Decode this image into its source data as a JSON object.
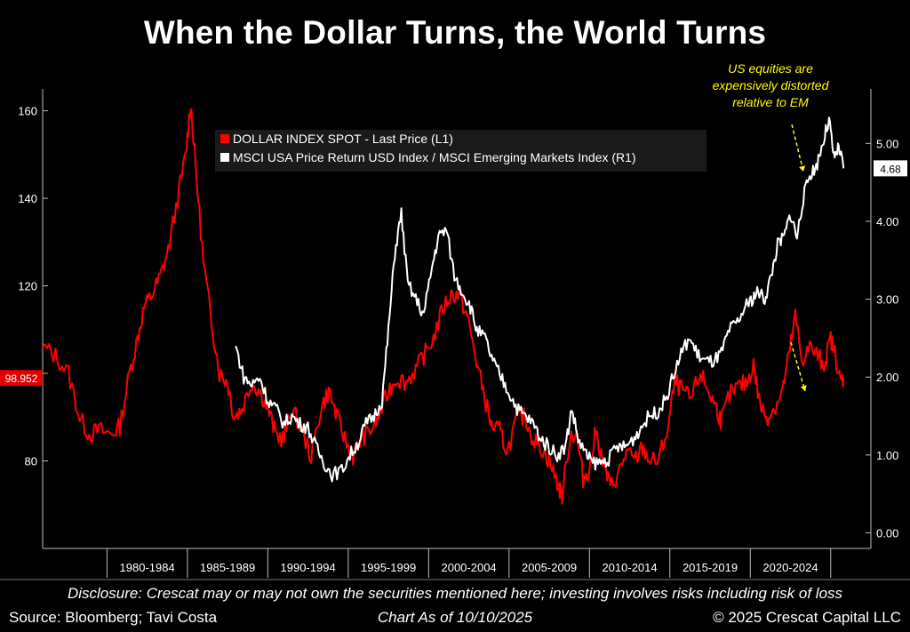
{
  "title": "When the Dollar Turns, the World Turns",
  "footer": {
    "disclosure": "Disclosure: Crescat may or may not own the securities mentioned here; investing involves risks including risk of loss",
    "source": "Source: Bloomberg; Tavi Costa",
    "as_of": "Chart As of 10/10/2025",
    "copyright": "© 2025 Crescat Capital LLC"
  },
  "annotation": {
    "lines": [
      "US equities are",
      "expensively distorted",
      "relative to EM"
    ],
    "color": "#ffff00"
  },
  "chart_data": {
    "type": "line",
    "x_categories": [
      "1980-1984",
      "1985-1989",
      "1990-1994",
      "1995-1999",
      "2000-2004",
      "2005-2009",
      "2010-2014",
      "2015-2019",
      "2020-2024"
    ],
    "xlim": [
      1976.0,
      2027.5
    ],
    "y_left": {
      "ticks": [
        80,
        100,
        120,
        140,
        160
      ],
      "tick_labels": [
        "80",
        "120",
        "140",
        "160"
      ],
      "range": [
        60,
        165
      ],
      "last_value_label": "98.952"
    },
    "y_right": {
      "ticks": [
        0,
        1,
        2,
        3,
        4,
        5
      ],
      "tick_labels": [
        "0.00",
        "1.00",
        "2.00",
        "3.00",
        "4.00",
        "5.00"
      ],
      "range": [
        -0.2,
        5.7
      ],
      "last_value_label": "4.68"
    },
    "legend": {
      "position": "top-center",
      "entries": [
        "DOLLAR INDEX SPOT - Last Price (L1)",
        "MSCI USA Price Return USD Index / MSCI Emerging Markets Index (R1)"
      ]
    },
    "series": [
      {
        "name": "DOLLAR INDEX SPOT - Last Price (L1)",
        "axis": "left",
        "color": "#ff0000",
        "points": [
          [
            1976.0,
            106
          ],
          [
            1976.8,
            104
          ],
          [
            1977.6,
            100
          ],
          [
            1978.3,
            90
          ],
          [
            1978.9,
            86
          ],
          [
            1979.5,
            87
          ],
          [
            1980.3,
            86
          ],
          [
            1980.8,
            88
          ],
          [
            1981.4,
            100
          ],
          [
            1981.9,
            108
          ],
          [
            1982.3,
            115
          ],
          [
            1982.8,
            118
          ],
          [
            1983.3,
            122
          ],
          [
            1983.8,
            128
          ],
          [
            1984.4,
            140
          ],
          [
            1984.9,
            150
          ],
          [
            1985.2,
            162
          ],
          [
            1985.5,
            148
          ],
          [
            1986.0,
            125
          ],
          [
            1986.5,
            112
          ],
          [
            1987.0,
            100
          ],
          [
            1987.5,
            98
          ],
          [
            1987.9,
            90
          ],
          [
            1988.4,
            92
          ],
          [
            1989.0,
            98
          ],
          [
            1989.5,
            96
          ],
          [
            1990.0,
            92
          ],
          [
            1990.5,
            86
          ],
          [
            1991.0,
            85
          ],
          [
            1991.5,
            92
          ],
          [
            1992.0,
            88
          ],
          [
            1992.7,
            81
          ],
          [
            1993.3,
            92
          ],
          [
            1993.8,
            96
          ],
          [
            1994.3,
            90
          ],
          [
            1994.9,
            84
          ],
          [
            1995.3,
            81
          ],
          [
            1995.8,
            85
          ],
          [
            1996.4,
            87
          ],
          [
            1996.9,
            90
          ],
          [
            1997.5,
            96
          ],
          [
            1998.0,
            99
          ],
          [
            1998.6,
            98
          ],
          [
            1999.2,
            101
          ],
          [
            1999.7,
            104
          ],
          [
            2000.3,
            108
          ],
          [
            2000.9,
            115
          ],
          [
            2001.4,
            118
          ],
          [
            2001.9,
            118
          ],
          [
            2002.4,
            113
          ],
          [
            2002.9,
            104
          ],
          [
            2003.4,
            96
          ],
          [
            2003.9,
            88
          ],
          [
            2004.4,
            87
          ],
          [
            2004.9,
            82
          ],
          [
            2005.5,
            90
          ],
          [
            2006.0,
            90
          ],
          [
            2006.5,
            85
          ],
          [
            2007.0,
            83
          ],
          [
            2007.5,
            80
          ],
          [
            2008.0,
            75
          ],
          [
            2008.3,
            72
          ],
          [
            2008.8,
            86
          ],
          [
            2009.2,
            86
          ],
          [
            2009.6,
            76
          ],
          [
            2010.0,
            78
          ],
          [
            2010.4,
            87
          ],
          [
            2010.9,
            79
          ],
          [
            2011.3,
            74
          ],
          [
            2011.8,
            77
          ],
          [
            2012.3,
            82
          ],
          [
            2012.8,
            80
          ],
          [
            2013.3,
            83
          ],
          [
            2013.8,
            80
          ],
          [
            2014.3,
            80
          ],
          [
            2014.9,
            88
          ],
          [
            2015.3,
            98
          ],
          [
            2015.8,
            96
          ],
          [
            2016.3,
            94
          ],
          [
            2016.9,
            100
          ],
          [
            2017.4,
            96
          ],
          [
            2017.9,
            92
          ],
          [
            2018.2,
            89
          ],
          [
            2018.7,
            95
          ],
          [
            2019.3,
            97
          ],
          [
            2019.8,
            98
          ],
          [
            2020.2,
            102
          ],
          [
            2020.6,
            93
          ],
          [
            2021.0,
            90
          ],
          [
            2021.5,
            92
          ],
          [
            2022.0,
            96
          ],
          [
            2022.4,
            104
          ],
          [
            2022.8,
            113
          ],
          [
            2023.2,
            103
          ],
          [
            2023.7,
            106
          ],
          [
            2024.2,
            104
          ],
          [
            2024.6,
            102
          ],
          [
            2025.0,
            108
          ],
          [
            2025.3,
            104
          ],
          [
            2025.6,
            98
          ],
          [
            2025.8,
            99
          ]
        ]
      },
      {
        "name": "MSCI USA Price Return USD Index / MSCI Emerging Markets Index (R1)",
        "axis": "right",
        "color": "#ffffff",
        "points": [
          [
            1988.0,
            2.4
          ],
          [
            1988.5,
            2.0
          ],
          [
            1989.0,
            1.9
          ],
          [
            1989.5,
            2.0
          ],
          [
            1990.0,
            1.7
          ],
          [
            1990.5,
            1.6
          ],
          [
            1991.0,
            1.4
          ],
          [
            1991.5,
            1.5
          ],
          [
            1992.0,
            1.4
          ],
          [
            1992.5,
            1.35
          ],
          [
            1993.0,
            1.1
          ],
          [
            1993.5,
            0.9
          ],
          [
            1994.0,
            0.75
          ],
          [
            1994.6,
            0.8
          ],
          [
            1995.1,
            1.0
          ],
          [
            1995.6,
            1.15
          ],
          [
            1996.1,
            1.4
          ],
          [
            1996.6,
            1.5
          ],
          [
            1997.1,
            1.7
          ],
          [
            1997.5,
            2.6
          ],
          [
            1997.9,
            3.6
          ],
          [
            1998.3,
            4.1
          ],
          [
            1998.7,
            3.2
          ],
          [
            1999.2,
            3.0
          ],
          [
            1999.7,
            2.8
          ],
          [
            2000.2,
            3.4
          ],
          [
            2000.6,
            3.8
          ],
          [
            2001.1,
            3.9
          ],
          [
            2001.6,
            3.3
          ],
          [
            2002.1,
            3.1
          ],
          [
            2002.6,
            2.9
          ],
          [
            2003.0,
            2.6
          ],
          [
            2003.5,
            2.5
          ],
          [
            2004.0,
            2.2
          ],
          [
            2004.5,
            2.0
          ],
          [
            2005.0,
            1.8
          ],
          [
            2005.5,
            1.6
          ],
          [
            2006.0,
            1.5
          ],
          [
            2006.5,
            1.4
          ],
          [
            2007.0,
            1.2
          ],
          [
            2007.5,
            1.1
          ],
          [
            2008.0,
            1.0
          ],
          [
            2008.5,
            1.1
          ],
          [
            2008.9,
            1.6
          ],
          [
            2009.3,
            1.2
          ],
          [
            2009.8,
            1.0
          ],
          [
            2010.2,
            0.9
          ],
          [
            2010.7,
            0.9
          ],
          [
            2011.2,
            0.95
          ],
          [
            2011.7,
            1.1
          ],
          [
            2012.2,
            1.1
          ],
          [
            2012.7,
            1.2
          ],
          [
            2013.2,
            1.35
          ],
          [
            2013.7,
            1.5
          ],
          [
            2014.2,
            1.55
          ],
          [
            2014.7,
            1.7
          ],
          [
            2015.2,
            2.0
          ],
          [
            2015.7,
            2.3
          ],
          [
            2016.2,
            2.5
          ],
          [
            2016.7,
            2.3
          ],
          [
            2017.2,
            2.2
          ],
          [
            2017.7,
            2.2
          ],
          [
            2018.2,
            2.3
          ],
          [
            2018.7,
            2.6
          ],
          [
            2019.2,
            2.7
          ],
          [
            2019.7,
            2.9
          ],
          [
            2020.1,
            3.0
          ],
          [
            2020.5,
            3.1
          ],
          [
            2020.9,
            3.0
          ],
          [
            2021.3,
            3.3
          ],
          [
            2021.7,
            3.7
          ],
          [
            2022.1,
            3.8
          ],
          [
            2022.5,
            4.1
          ],
          [
            2022.9,
            3.8
          ],
          [
            2023.3,
            4.3
          ],
          [
            2023.7,
            4.6
          ],
          [
            2024.1,
            4.7
          ],
          [
            2024.5,
            5.0
          ],
          [
            2024.9,
            5.3
          ],
          [
            2025.2,
            4.8
          ],
          [
            2025.5,
            4.95
          ],
          [
            2025.8,
            4.68
          ]
        ]
      }
    ]
  }
}
